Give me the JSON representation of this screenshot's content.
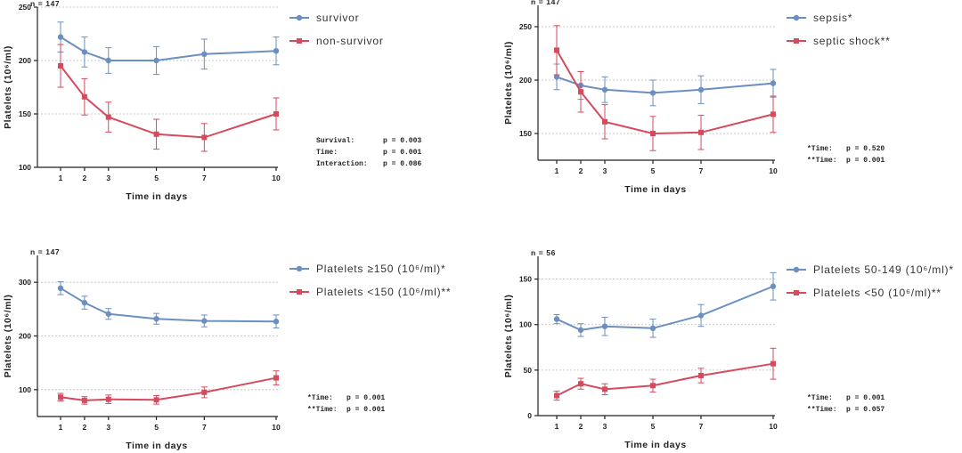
{
  "colors": {
    "blue": "#6b8fc0",
    "red": "#d64a5e"
  },
  "chart_data": [
    {
      "type": "line",
      "n_label": "n = 147",
      "x": [
        1,
        2,
        3,
        5,
        7,
        10
      ],
      "xlabel": "Time in days",
      "ylabel": "Platelets (10⁶/ml)",
      "ylim": [
        100,
        250
      ],
      "yticks": [
        100,
        150,
        200,
        250
      ],
      "grid": "dotted",
      "legend": "top-right",
      "series": [
        {
          "name": "survivor",
          "color": "#6b8fc0",
          "marker": "circle",
          "values": [
            222,
            208,
            200,
            200,
            206,
            209
          ],
          "err": [
            14,
            14,
            12,
            13,
            14,
            13
          ]
        },
        {
          "name": "non-survivor",
          "color": "#d64a5e",
          "marker": "square",
          "values": [
            195,
            166,
            147,
            131,
            128,
            150
          ],
          "err": [
            20,
            17,
            14,
            14,
            13,
            15
          ]
        }
      ],
      "stats": [
        {
          "label": "Survival:",
          "value": "p = 0.003"
        },
        {
          "label": "Time:",
          "value": "p = 0.001"
        },
        {
          "label": "Interaction:",
          "value": "p = 0.086"
        }
      ]
    },
    {
      "type": "line",
      "n_label": "n = 147",
      "x": [
        1,
        2,
        3,
        5,
        7,
        10
      ],
      "xlabel": "Time in days",
      "ylabel": "Platelets (10⁶/ml)",
      "ylim": [
        125,
        270
      ],
      "yticks": [
        150,
        200,
        250
      ],
      "grid": "dotted",
      "legend": "top-right",
      "series": [
        {
          "name": "sepsis*",
          "color": "#6b8fc0",
          "marker": "circle",
          "values": [
            203,
            195,
            191,
            188,
            191,
            197
          ],
          "err": [
            12,
            13,
            12,
            12,
            13,
            13
          ]
        },
        {
          "name": "septic shock**",
          "color": "#d64a5e",
          "marker": "square",
          "values": [
            228,
            189,
            161,
            150,
            151,
            168
          ],
          "err": [
            23,
            19,
            16,
            16,
            16,
            17
          ]
        }
      ],
      "stats": [
        {
          "label": "*Time:",
          "value": "p = 0.520"
        },
        {
          "label": "**Time:",
          "value": "p = 0.001"
        }
      ]
    },
    {
      "type": "line",
      "n_label": "n = 147",
      "x": [
        1,
        2,
        3,
        5,
        7,
        10
      ],
      "xlabel": "Time in days",
      "ylabel": "Platelets (10⁶/ml)",
      "ylim": [
        50,
        350
      ],
      "yticks": [
        100,
        200,
        300
      ],
      "grid": "dotted",
      "legend": "top-right",
      "series": [
        {
          "name": "Platelets ≥150 (10⁶/ml)*",
          "color": "#6b8fc0",
          "marker": "circle",
          "values": [
            289,
            262,
            241,
            232,
            228,
            227
          ],
          "err": [
            12,
            12,
            10,
            10,
            11,
            12
          ]
        },
        {
          "name": "Platelets <150 (10⁶/ml)**",
          "color": "#d64a5e",
          "marker": "square",
          "values": [
            86,
            80,
            82,
            81,
            95,
            122
          ],
          "err": [
            7,
            7,
            8,
            8,
            10,
            13
          ]
        }
      ],
      "stats": [
        {
          "label": "*Time:",
          "value": "p = 0.001"
        },
        {
          "label": "**Time:",
          "value": "p = 0.001"
        }
      ]
    },
    {
      "type": "line",
      "n_label": "n = 56",
      "x": [
        1,
        2,
        3,
        5,
        7,
        10
      ],
      "xlabel": "Time in days",
      "ylabel": "Platelets (10⁶/ml)",
      "ylim": [
        0,
        175
      ],
      "yticks": [
        0,
        50,
        100,
        150
      ],
      "grid": "dotted",
      "legend": "top-right",
      "series": [
        {
          "name": "Platelets 50-149 (10⁶/ml)*",
          "color": "#6b8fc0",
          "marker": "circle",
          "values": [
            106,
            94,
            98,
            96,
            110,
            142
          ],
          "err": [
            5,
            7,
            10,
            10,
            12,
            15
          ]
        },
        {
          "name": "Platelets <50 (10⁶/ml)**",
          "color": "#d64a5e",
          "marker": "square",
          "values": [
            22,
            35,
            29,
            33,
            44,
            57
          ],
          "err": [
            5,
            6,
            6,
            7,
            8,
            17
          ]
        }
      ],
      "stats": [
        {
          "label": "*Time:",
          "value": "p = 0.001"
        },
        {
          "label": "**Time:",
          "value": "p = 0.057"
        }
      ]
    }
  ]
}
